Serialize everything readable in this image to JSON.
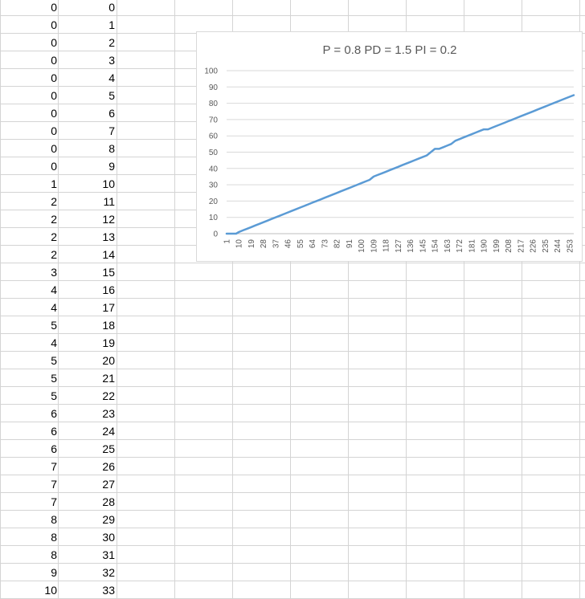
{
  "sheet": {
    "col_a": [
      0,
      0,
      0,
      0,
      0,
      0,
      0,
      0,
      0,
      0,
      1,
      2,
      2,
      2,
      2,
      3,
      4,
      4,
      5,
      4,
      5,
      5,
      5,
      6,
      6,
      6,
      7,
      7,
      7,
      8,
      8,
      8,
      9,
      10
    ],
    "col_b": [
      0,
      1,
      2,
      3,
      4,
      5,
      6,
      7,
      8,
      9,
      10,
      11,
      12,
      13,
      14,
      15,
      16,
      17,
      18,
      19,
      20,
      21,
      22,
      23,
      24,
      25,
      26,
      27,
      28,
      29,
      30,
      31,
      32,
      33
    ]
  },
  "chart_data": {
    "type": "line",
    "title": "P = 0.8  PD = 1.5 PI = 0.2",
    "xlabel": "",
    "ylabel": "",
    "ylim": [
      0,
      100
    ],
    "yticks": [
      "0",
      "10",
      "20",
      "30",
      "40",
      "50",
      "60",
      "70",
      "80",
      "90",
      "100"
    ],
    "xticks": [
      "1",
      "10",
      "19",
      "28",
      "37",
      "46",
      "55",
      "64",
      "73",
      "82",
      "91",
      "100",
      "109",
      "118",
      "127",
      "136",
      "145",
      "154",
      "163",
      "172",
      "181",
      "190",
      "199",
      "208",
      "217",
      "226",
      "235",
      "244",
      "253"
    ],
    "grid": true,
    "legend": "none",
    "color": "#5b9bd5",
    "series": [
      {
        "x": [
          1,
          5,
          8,
          10,
          13,
          16,
          19,
          22,
          25,
          28,
          31,
          34,
          37,
          40,
          43,
          46,
          49,
          52,
          55,
          58,
          61,
          64,
          67,
          70,
          73,
          76,
          79,
          82,
          85,
          88,
          91,
          94,
          97,
          100,
          103,
          106,
          109,
          112,
          115,
          118,
          121,
          124,
          127,
          130,
          133,
          136,
          139,
          142,
          145,
          148,
          151,
          154,
          157,
          160,
          163,
          166,
          169,
          172,
          175,
          178,
          181,
          184,
          187,
          190,
          193,
          196,
          199,
          202,
          205,
          208,
          211,
          214,
          217,
          220,
          223,
          226,
          229,
          232,
          235,
          238,
          241,
          244,
          247,
          250,
          253,
          256
        ],
        "values": [
          0,
          0,
          0,
          1,
          2,
          3,
          4,
          5,
          6,
          7,
          8,
          9,
          10,
          11,
          12,
          13,
          14,
          15,
          16,
          17,
          18,
          19,
          20,
          21,
          22,
          23,
          24,
          25,
          26,
          27,
          28,
          29,
          30,
          31,
          32,
          33,
          35,
          36,
          37,
          38,
          39,
          40,
          41,
          42,
          43,
          44,
          45,
          46,
          47,
          48,
          50,
          52,
          52,
          53,
          54,
          55,
          57,
          58,
          59,
          60,
          61,
          62,
          63,
          64,
          64,
          65,
          66,
          67,
          68,
          69,
          70,
          71,
          72,
          73,
          74,
          75,
          76,
          77,
          78,
          79,
          80,
          81,
          82,
          83,
          84,
          85
        ]
      }
    ]
  }
}
